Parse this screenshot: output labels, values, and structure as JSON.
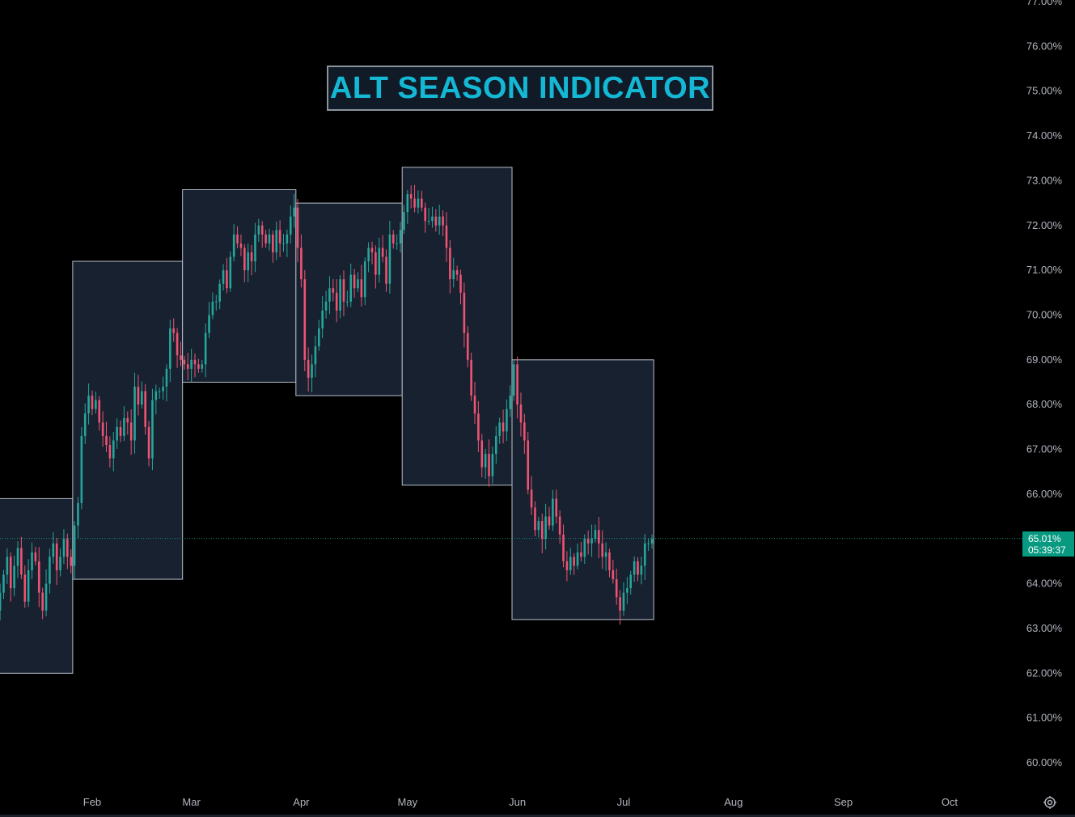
{
  "title": "ALT SEASON INDICATOR",
  "price_tag": {
    "value": "65.01%",
    "countdown": "05:39:37"
  },
  "colors": {
    "background": "#000000",
    "up": "#26a69a",
    "down": "#ef5372",
    "box_fill": "#172130",
    "box_border": "#b7bec8",
    "title": "#14b8d4",
    "axis_text": "#b2b5be",
    "price_tag": "#089981"
  },
  "icons": {
    "settings": "gear-icon"
  },
  "chart_data": {
    "type": "candlestick",
    "title": "ALT SEASON INDICATOR",
    "y_axis": {
      "unit": "%",
      "range": [
        59.5,
        77.0
      ],
      "position": "right",
      "ticks": [
        "77.00%",
        "76.00%",
        "75.00%",
        "74.00%",
        "73.00%",
        "72.00%",
        "71.00%",
        "70.00%",
        "69.00%",
        "68.00%",
        "67.00%",
        "66.00%",
        "65.00%",
        "64.00%",
        "63.00%",
        "62.00%",
        "61.00%",
        "60.00%"
      ],
      "tick_values": [
        77,
        76,
        75,
        74,
        73,
        72,
        71,
        70,
        69,
        68,
        67,
        66,
        65,
        64,
        63,
        62,
        61,
        60
      ]
    },
    "x_axis": {
      "labels": [
        "Feb",
        "Mar",
        "Apr",
        "May",
        "Jun",
        "Jul",
        "Aug",
        "Sep",
        "Oct"
      ],
      "label_days": [
        31,
        59,
        90,
        120,
        151,
        181,
        212,
        243,
        273
      ],
      "start_date": "Jan 1",
      "last_candle_day": 266
    },
    "current_value": 65.01,
    "grid": false,
    "monthly_boxes": [
      {
        "month": "Jan",
        "high": 65.9,
        "low": 62.0
      },
      {
        "month": "Feb",
        "high": 71.2,
        "low": 64.1
      },
      {
        "month": "Mar",
        "high": 72.8,
        "low": 68.5
      },
      {
        "month": "Apr",
        "high": 72.5,
        "low": 68.2
      },
      {
        "month": "May",
        "high": 73.3,
        "low": 66.2
      },
      {
        "month": "Jun",
        "high": 69.0,
        "low": 63.2
      }
    ],
    "daily_closes": [
      {
        "month": "Jan",
        "values": [
          63.8,
          64.2,
          64.6,
          63.9,
          64.4,
          64.8,
          64.2,
          63.6,
          64.3,
          64.7,
          64.5,
          63.8,
          63.4,
          64.0,
          64.6,
          64.9,
          64.3,
          64.6,
          65.0,
          64.6,
          64.4
        ]
      },
      {
        "month": "Feb",
        "values": [
          65.3,
          65.8,
          67.3,
          67.8,
          68.2,
          67.9,
          68.1,
          67.6,
          67.3,
          67.1,
          66.8,
          67.2,
          67.5,
          67.3,
          67.7,
          67.6,
          67.2,
          68.4,
          68.0,
          68.3,
          67.5,
          66.8,
          68.1,
          68.3,
          68.3,
          68.4,
          68.8,
          69.7,
          69.6,
          69.1,
          69.0
        ]
      },
      {
        "month": "Mar",
        "values": [
          68.9,
          68.8,
          69.0,
          68.9,
          68.8,
          68.9,
          69.6,
          70.0,
          70.3,
          70.3,
          70.7,
          71.0,
          70.6,
          71.3,
          71.8,
          71.6,
          71.5,
          71.0,
          71.4,
          71.2,
          71.8,
          72.0,
          71.8,
          71.6,
          71.8,
          71.4,
          71.9,
          71.6,
          71.6,
          71.8,
          72.2,
          72.4
        ]
      },
      {
        "month": "Apr",
        "values": [
          71.5,
          70.8,
          69.0,
          68.6,
          68.9,
          69.3,
          69.7,
          70.1,
          70.3,
          70.6,
          70.5,
          70.1,
          70.8,
          70.3,
          70.3,
          70.9,
          70.6,
          70.8,
          70.4,
          71.2,
          71.5,
          71.4,
          70.9,
          71.5,
          71.3,
          70.7,
          71.8,
          71.6,
          71.6,
          71.9
        ]
      },
      {
        "month": "May",
        "values": [
          72.3,
          72.7,
          72.6,
          72.4,
          72.6,
          72.4,
          72.1,
          72.1,
          72.2,
          72.0,
          72.2,
          72.0,
          71.5,
          70.8,
          71.0,
          70.9,
          70.5,
          69.6,
          69.0,
          68.2,
          67.8,
          67.2,
          66.6,
          66.9,
          66.4,
          66.9,
          67.3,
          67.6,
          67.4,
          67.9,
          68.2
        ]
      },
      {
        "month": "Jun",
        "values": [
          68.9,
          68.0,
          67.6,
          67.2,
          66.1,
          65.7,
          65.2,
          65.4,
          65.0,
          65.5,
          65.3,
          65.9,
          65.5,
          65.1,
          64.5,
          64.3,
          64.6,
          64.4,
          64.7,
          64.6,
          65.0,
          64.9,
          65.0,
          65.2,
          64.9,
          64.6,
          64.7,
          64.3,
          64.1,
          63.7,
          63.4,
          63.8,
          63.9,
          64.2,
          64.5,
          64.2,
          64.4,
          64.9,
          64.9,
          65.0
        ]
      }
    ]
  }
}
